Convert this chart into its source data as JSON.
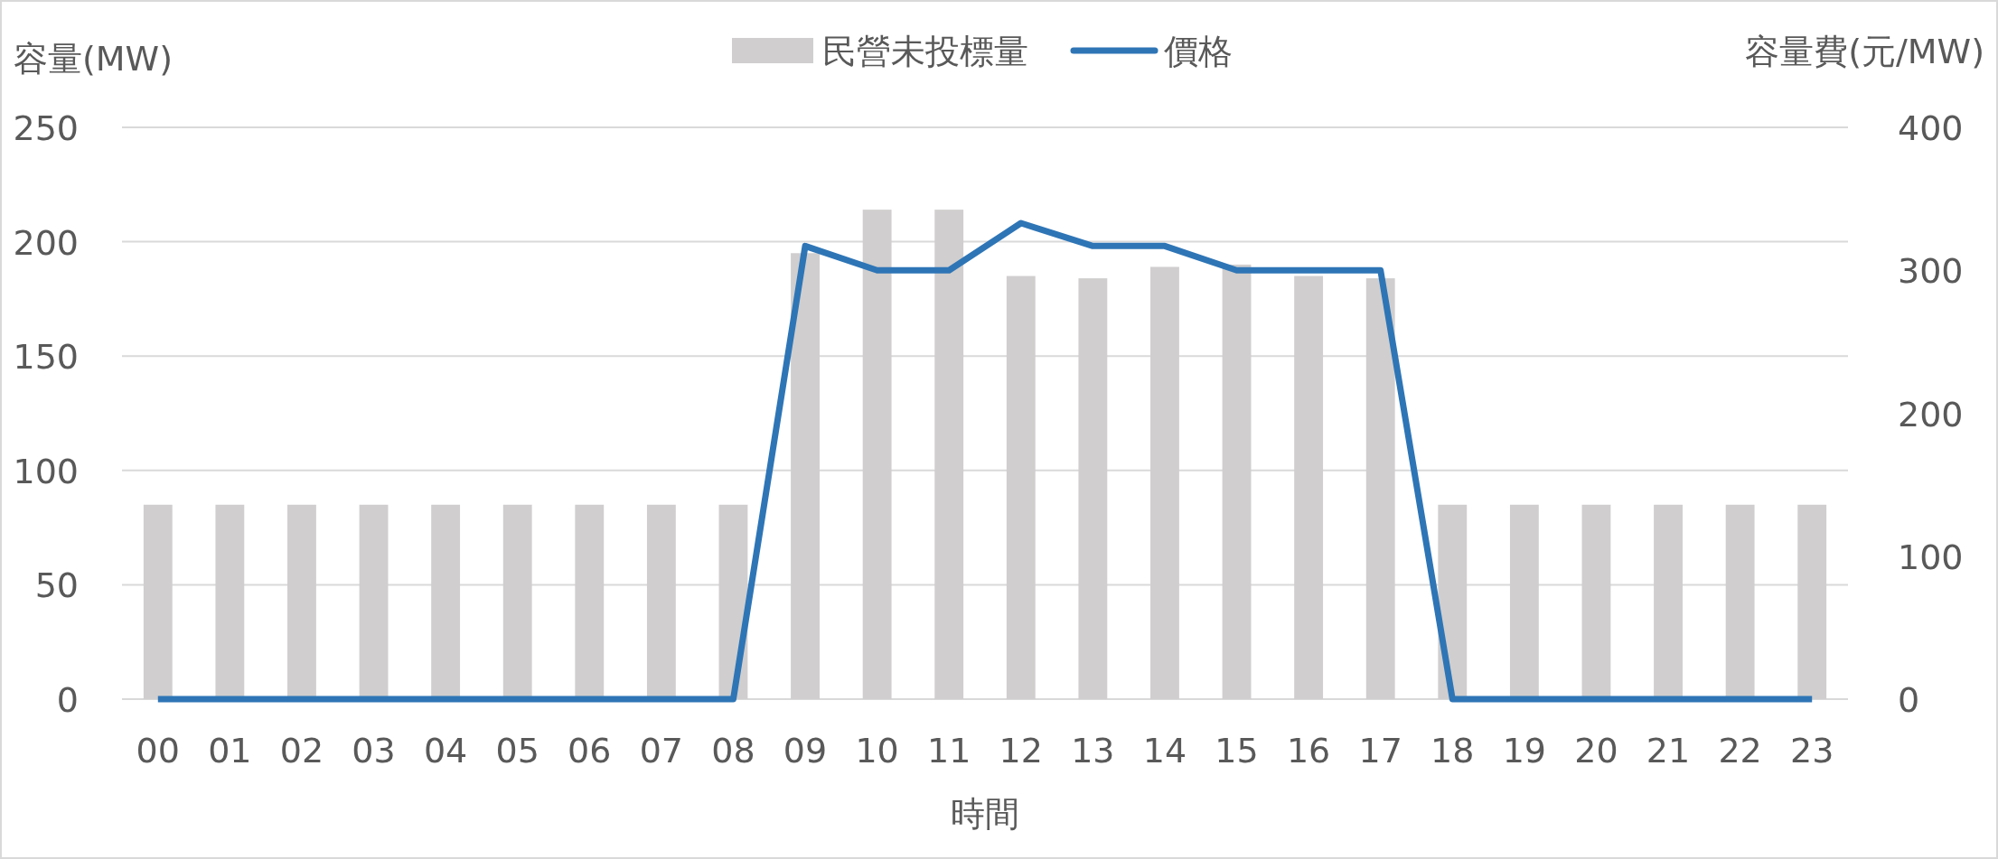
{
  "chart_data": {
    "type": "bar",
    "xlabel": "時間",
    "ylabel": "容量(MW)",
    "y2label": "容量費(元/MW)",
    "categories": [
      "00",
      "01",
      "02",
      "03",
      "04",
      "05",
      "06",
      "07",
      "08",
      "09",
      "10",
      "11",
      "12",
      "13",
      "14",
      "15",
      "16",
      "17",
      "18",
      "19",
      "20",
      "21",
      "22",
      "23"
    ],
    "series": [
      {
        "name": "民營未投標量",
        "color": "#d0cece",
        "values": [
          85,
          85,
          85,
          85,
          85,
          85,
          85,
          85,
          85,
          195,
          214,
          214,
          185,
          184,
          189,
          190,
          185,
          184,
          85,
          85,
          85,
          85,
          85,
          85
        ]
      },
      {
        "name": "價格",
        "type": "line",
        "axis": "y2",
        "color": "#2e75b6",
        "values": [
          0,
          0,
          0,
          0,
          0,
          0,
          0,
          0,
          0,
          317,
          300,
          300,
          333,
          317,
          317,
          300,
          300,
          300,
          0,
          0,
          0,
          0,
          0,
          0
        ]
      }
    ],
    "ylim": [
      0,
      250
    ],
    "yticks": [
      0,
      50,
      100,
      150,
      200,
      250
    ],
    "y2lim": [
      0,
      400
    ],
    "y2ticks": [
      0,
      100,
      200,
      300,
      400
    ],
    "grid": "y",
    "legend": "top"
  }
}
